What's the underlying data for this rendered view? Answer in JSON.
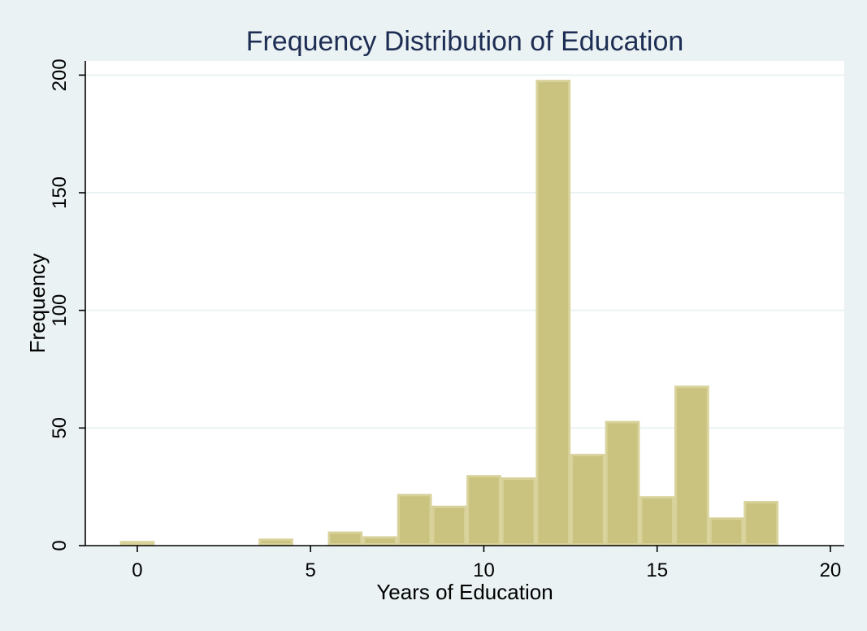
{
  "chart_data": {
    "type": "bar",
    "title": "Frequency Distribution of Education",
    "xlabel": "Years of Education",
    "ylabel": "Frequency",
    "xlim": [
      -1.5,
      20.4
    ],
    "ylim": [
      0,
      206
    ],
    "xticks": [
      0,
      5,
      10,
      15,
      20
    ],
    "yticks": [
      0,
      50,
      100,
      150,
      200
    ],
    "grid": true,
    "bin_width": 1,
    "colors": {
      "bar": "#cac27f",
      "bar_edge": "#d8d29a",
      "background": "#eaf2f3",
      "plot_area": "#ffffff",
      "title": "#1e2d53"
    },
    "bins": [
      {
        "x": 0,
        "count": 2
      },
      {
        "x": 1,
        "count": 0
      },
      {
        "x": 2,
        "count": 1
      },
      {
        "x": 3,
        "count": 1
      },
      {
        "x": 4,
        "count": 3
      },
      {
        "x": 5,
        "count": 1
      },
      {
        "x": 6,
        "count": 6
      },
      {
        "x": 7,
        "count": 4
      },
      {
        "x": 8,
        "count": 22
      },
      {
        "x": 9,
        "count": 17
      },
      {
        "x": 10,
        "count": 30
      },
      {
        "x": 11,
        "count": 29
      },
      {
        "x": 12,
        "count": 198
      },
      {
        "x": 13,
        "count": 39
      },
      {
        "x": 14,
        "count": 53
      },
      {
        "x": 15,
        "count": 21
      },
      {
        "x": 16,
        "count": 68
      },
      {
        "x": 17,
        "count": 12
      },
      {
        "x": 18,
        "count": 19
      }
    ]
  }
}
